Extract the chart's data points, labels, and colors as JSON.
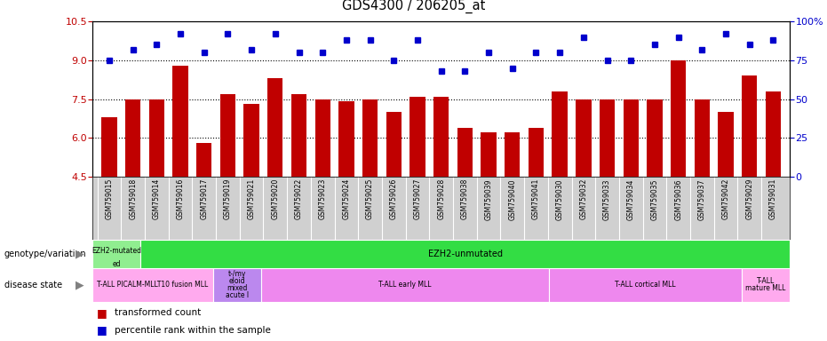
{
  "title": "GDS4300 / 206205_at",
  "samples": [
    "GSM759015",
    "GSM759018",
    "GSM759014",
    "GSM759016",
    "GSM759017",
    "GSM759019",
    "GSM759021",
    "GSM759020",
    "GSM759022",
    "GSM759023",
    "GSM759024",
    "GSM759025",
    "GSM759026",
    "GSM759027",
    "GSM759028",
    "GSM759038",
    "GSM759039",
    "GSM759040",
    "GSM759041",
    "GSM759030",
    "GSM759032",
    "GSM759033",
    "GSM759034",
    "GSM759035",
    "GSM759036",
    "GSM759037",
    "GSM759042",
    "GSM759029",
    "GSM759031"
  ],
  "transformed_count": [
    6.8,
    7.5,
    7.5,
    8.8,
    5.8,
    7.7,
    7.3,
    8.3,
    7.7,
    7.5,
    7.4,
    7.5,
    7.0,
    7.6,
    7.6,
    6.4,
    6.2,
    6.2,
    6.4,
    7.8,
    7.5,
    7.5,
    7.5,
    7.5,
    9.0,
    7.5,
    7.0,
    8.4,
    7.8
  ],
  "percentile_rank": [
    75,
    82,
    85,
    92,
    80,
    92,
    82,
    92,
    80,
    80,
    88,
    88,
    75,
    88,
    68,
    68,
    80,
    70,
    80,
    80,
    90,
    75,
    75,
    85,
    90,
    82,
    92,
    85,
    88
  ],
  "ylim_left": [
    4.5,
    10.5
  ],
  "ylim_right": [
    0,
    100
  ],
  "yticks_left": [
    4.5,
    6.0,
    7.5,
    9.0,
    10.5
  ],
  "yticks_right": [
    0,
    25,
    50,
    75,
    100
  ],
  "bar_color": "#C00000",
  "dot_color": "#0000CC",
  "background_color": "#ffffff",
  "xlabel_bg_color": "#D0D0D0",
  "genotype_label": "genotype/variation",
  "disease_label": "disease state",
  "genotype_segments": [
    {
      "label": "EZH2-mutated\ned",
      "start": 0,
      "end": 2,
      "color": "#90EE90"
    },
    {
      "label": "EZH2-unmutated",
      "start": 2,
      "end": 29,
      "color": "#33DD44"
    }
  ],
  "disease_segments": [
    {
      "label": "T-ALL PICALM-MLLT10 fusion MLL",
      "start": 0,
      "end": 5,
      "color": "#FFAAEE"
    },
    {
      "label": "t-/my\neloid\nmixed\nacute l",
      "start": 5,
      "end": 7,
      "color": "#BB88EE"
    },
    {
      "label": "T-ALL early MLL",
      "start": 7,
      "end": 19,
      "color": "#EE88EE"
    },
    {
      "label": "T-ALL cortical MLL",
      "start": 19,
      "end": 27,
      "color": "#EE88EE"
    },
    {
      "label": "T-ALL\nmature MLL",
      "start": 27,
      "end": 29,
      "color": "#FFAAEE"
    }
  ],
  "legend_bar_label": "transformed count",
  "legend_dot_label": "percentile rank within the sample",
  "gridlines": [
    6.0,
    7.5,
    9.0
  ]
}
